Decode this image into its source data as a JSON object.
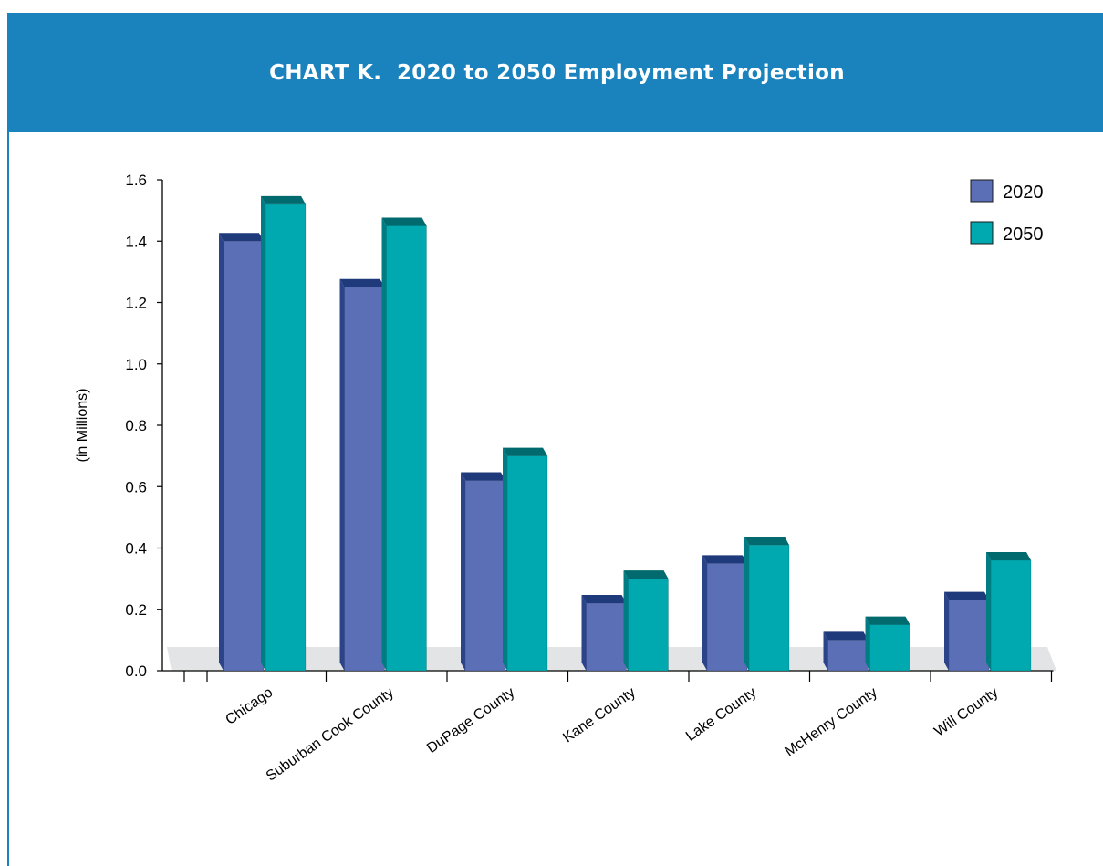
{
  "header": {
    "title": "CHART K.  2020 to 2050 Employment Projection"
  },
  "chart_data": {
    "type": "bar",
    "title": "CHART K.  2020 to 2050 Employment Projection",
    "xlabel": "",
    "ylabel": "(in Millions)",
    "ylim": [
      0,
      1.6
    ],
    "yticks": [
      "0.0",
      "0.2",
      "0.4",
      "0.6",
      "0.8",
      "1.0",
      "1.2",
      "1.4",
      "1.6"
    ],
    "categories": [
      "Chicago",
      "Suburban Cook County",
      "DuPage County",
      "Kane County",
      "Lake County",
      "McHenry County",
      "Will County"
    ],
    "series": [
      {
        "name": "2020",
        "values": [
          1.4,
          1.25,
          0.62,
          0.22,
          0.35,
          0.1,
          0.23
        ],
        "color": "#5a6fb5",
        "top": "#1f3a7a",
        "side": "#2b4388"
      },
      {
        "name": "2050",
        "values": [
          1.52,
          1.45,
          0.7,
          0.3,
          0.41,
          0.15,
          0.36
        ],
        "color": "#00a8b0",
        "top": "#006a6e",
        "side": "#007d83"
      }
    ],
    "legend": "top-right",
    "grid": false
  }
}
